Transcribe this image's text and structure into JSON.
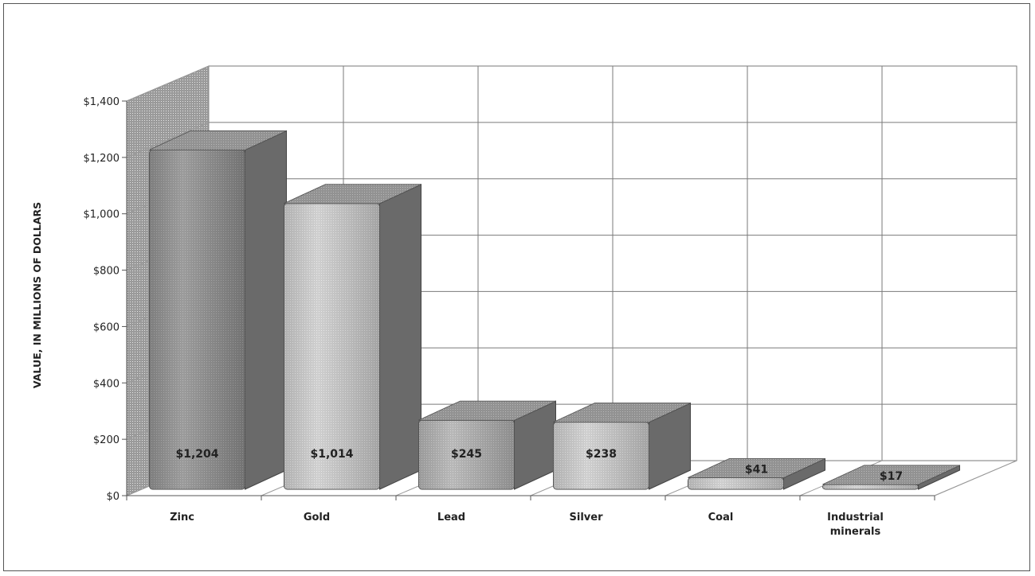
{
  "chart_data": {
    "type": "bar",
    "title": "",
    "xlabel": "",
    "ylabel": "VALUE, IN MILLIONS OF DOLLARS",
    "ylim": [
      0,
      1400
    ],
    "y_ticks": [
      0,
      200,
      400,
      600,
      800,
      1000,
      1200,
      1400
    ],
    "y_tick_labels": [
      "$0",
      "$200",
      "$400",
      "$600",
      "$800",
      "$1,000",
      "$1,200",
      "$1,400"
    ],
    "categories": [
      "Zinc",
      "Gold",
      "Lead",
      "Silver",
      "Coal",
      "Industrial minerals"
    ],
    "values": [
      1204,
      1014,
      245,
      238,
      41,
      17
    ],
    "data_labels": [
      "$1,204",
      "$1,014",
      "$245",
      "$238",
      "$41",
      "$17"
    ],
    "grid": true,
    "style": "3d-column"
  }
}
